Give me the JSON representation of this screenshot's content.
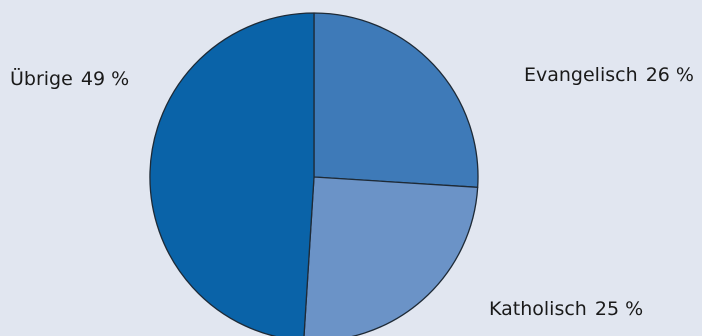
{
  "chart_data": {
    "type": "pie",
    "title": "",
    "slices": [
      {
        "name": "Evangelisch",
        "value": 26,
        "display": "26 %",
        "color": "#3e7ab8"
      },
      {
        "name": "Katholisch",
        "value": 25,
        "display": "25 %",
        "color": "#6b93c7"
      },
      {
        "name": "Übrige",
        "value": 49,
        "display": "49 %",
        "color": "#0a63a8"
      }
    ]
  },
  "colors": {
    "background": "#e1e6f0",
    "slice_border": "#1e2a36"
  }
}
